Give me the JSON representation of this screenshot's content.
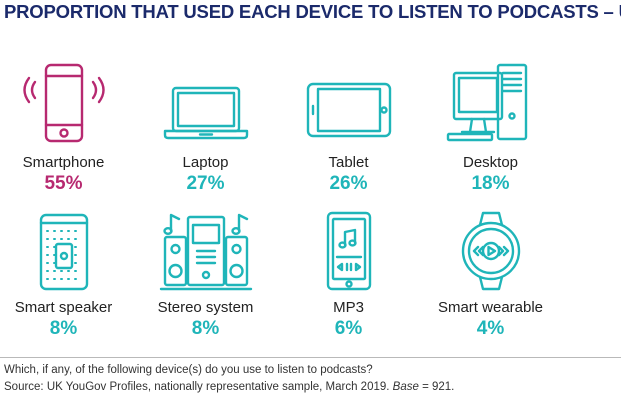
{
  "chart_data": {
    "type": "table",
    "title": "PROPORTION THAT USED EACH DEVICE TO LISTEN TO PODCASTS – UK",
    "unit": "%",
    "categories": [
      "Smartphone",
      "Laptop",
      "Tablet",
      "Desktop",
      "Smart speaker",
      "Stereo system",
      "MP3",
      "Smart wearable"
    ],
    "values": [
      55,
      27,
      26,
      18,
      8,
      8,
      6,
      4
    ],
    "value_labels": [
      "55%",
      "27%",
      "26%",
      "18%",
      "8%",
      "8%",
      "6%",
      "4%"
    ],
    "icons": [
      "smartphone-icon",
      "laptop-icon",
      "tablet-icon",
      "desktop-icon",
      "smart-speaker-icon",
      "stereo-system-icon",
      "mp3-icon",
      "smart-wearable-icon"
    ],
    "highlight_index": 0
  },
  "colors": {
    "title": "#1b2a6b",
    "accent": "#1fb5b9",
    "highlight": "#b72970"
  },
  "footnote": {
    "question": "Which, if any, of the following device(s) do you use to listen to podcasts?",
    "source_prefix": "Source: UK YouGov Profiles, nationally representative sample, March 2019. ",
    "base_label": "Base",
    "base_value": " = 921."
  }
}
